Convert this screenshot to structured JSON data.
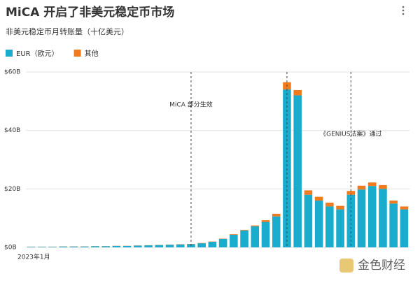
{
  "chart_data": {
    "type": "stacked_bar",
    "title": "MiCA 开启了非美元稳定币市场",
    "subtitle": "非美元稳定币月转账量（十亿美元）",
    "categories": [
      "2023年1月",
      null,
      null,
      null,
      null,
      null,
      null,
      null,
      null,
      null,
      null,
      null,
      null,
      null,
      null,
      null,
      null,
      null,
      null,
      null,
      null,
      null,
      null,
      null,
      null,
      null,
      null,
      null,
      null,
      null,
      null,
      null,
      null,
      null,
      null,
      null
    ],
    "series": [
      {
        "name": "EUR（欧元）",
        "color": "#1aaccc",
        "values": [
          0.2,
          0.2,
          0.2,
          0.3,
          0.3,
          0.3,
          0.4,
          0.4,
          0.5,
          0.5,
          0.6,
          0.7,
          0.8,
          0.9,
          1.0,
          1.1,
          1.4,
          1.9,
          2.9,
          4.3,
          5.8,
          7.2,
          8.7,
          10.6,
          54,
          52,
          18,
          16,
          14,
          13,
          18,
          19.8,
          21,
          20,
          15,
          13
        ]
      },
      {
        "name": "其他",
        "color": "#f07a1e",
        "values": [
          0.05,
          0.05,
          0.05,
          0.05,
          0.05,
          0.05,
          0.05,
          0.05,
          0.05,
          0.05,
          0.05,
          0.05,
          0.05,
          0.05,
          0.1,
          0.1,
          0.1,
          0.1,
          0.1,
          0.2,
          0.2,
          0.3,
          0.6,
          0.9,
          2.5,
          1.8,
          1.5,
          1.3,
          1.3,
          1.2,
          1.3,
          1.3,
          1.2,
          1.3,
          1.0,
          1.0
        ]
      }
    ],
    "ylim": [
      0,
      60
    ],
    "yticks": [
      {
        "value": 0,
        "label": "$0B"
      },
      {
        "value": 20,
        "label": "$20B"
      },
      {
        "value": 40,
        "label": "$40B"
      },
      {
        "value": 60,
        "label": "$60B"
      }
    ],
    "grid": true,
    "legend": "top-left",
    "event_lines": [
      15,
      24,
      30
    ],
    "annotations": [
      {
        "at": 15,
        "text": "MiCA 部分生效"
      },
      {
        "at": 30,
        "text": "《GENIUS法案》通过"
      }
    ],
    "watermark": "金色财经"
  }
}
